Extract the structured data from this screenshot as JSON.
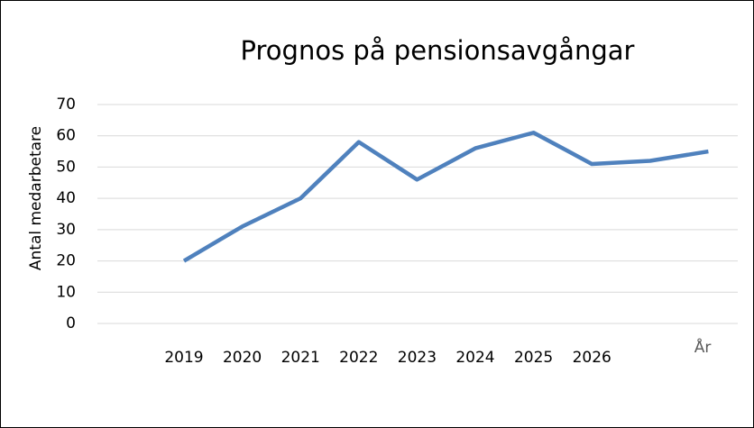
{
  "chart_data": {
    "type": "line",
    "title": "Prognos på pensionsavgångar",
    "x_label": "År",
    "y_label": "Antal medarbetare",
    "categories": [
      "2019",
      "2020",
      "2021",
      "2022",
      "2023",
      "2024",
      "2025",
      "2026",
      null,
      null
    ],
    "series": [
      {
        "name": "Antal medarbetare",
        "color": "#4f81bd",
        "values": [
          20,
          31,
          40,
          58,
          46,
          56,
          61,
          51,
          52,
          55
        ]
      }
    ],
    "ylim": [
      0,
      70
    ],
    "yticks": [
      0,
      10,
      20,
      30,
      40,
      50,
      60,
      70
    ],
    "grid": true
  }
}
